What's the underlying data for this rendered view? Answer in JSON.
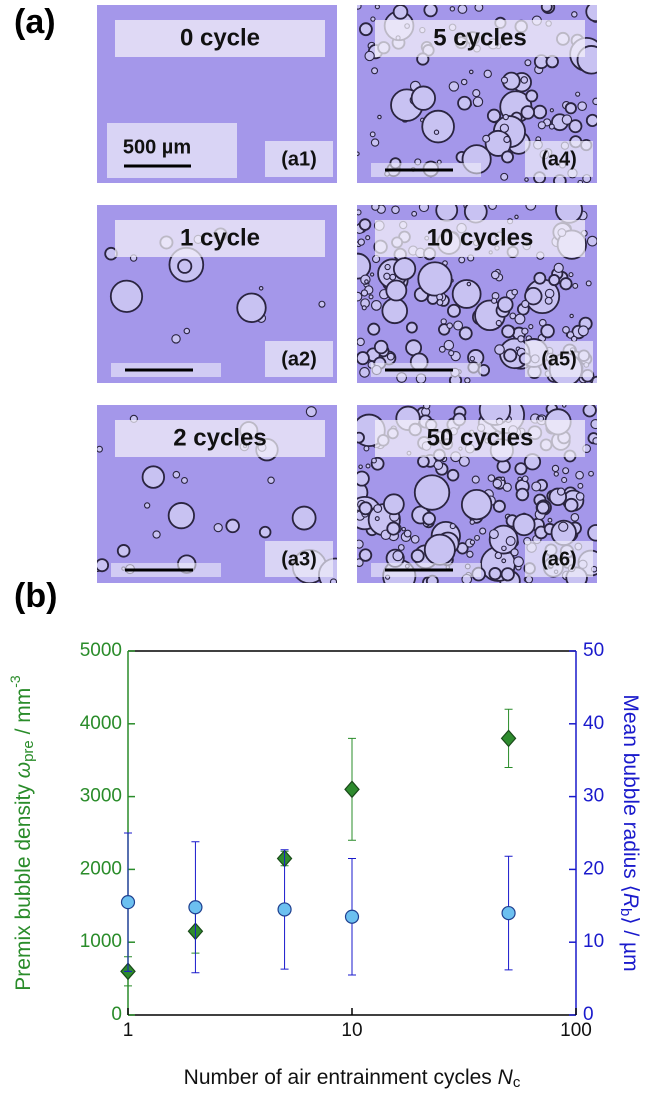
{
  "panel_a": {
    "label": "(a)",
    "images": [
      {
        "caption": "0 cycle",
        "tag": "(a1)",
        "scale_label": "500 µm"
      },
      {
        "caption": "1 cycle",
        "tag": "(a2)"
      },
      {
        "caption": "2 cycles",
        "tag": "(a3)"
      },
      {
        "caption": "5 cycles",
        "tag": "(a4)"
      },
      {
        "caption": "10 cycles",
        "tag": "(a5)"
      },
      {
        "caption": "50 cycles",
        "tag": "(a6)"
      }
    ]
  },
  "chart_data": {
    "type": "scatter",
    "label": "(b)",
    "x_label": [
      "Number of air entrainment cycles ",
      "N",
      "c"
    ],
    "y_label": [
      "Premix bubble density ",
      "ω",
      "pre",
      " / mm",
      "-3"
    ],
    "y2_label": [
      "Mean bubble radius ",
      "⟨",
      "R",
      "b",
      "⟩",
      " / µm"
    ],
    "x": [
      1,
      2,
      5,
      10,
      50
    ],
    "xlim": [
      1,
      100
    ],
    "xticks": [
      1,
      10,
      100
    ],
    "log_x": true,
    "ylim": [
      0,
      5000
    ],
    "yticks": [
      0,
      1000,
      2000,
      3000,
      4000,
      5000
    ],
    "y2lim": [
      0,
      50
    ],
    "y2ticks": [
      0,
      10,
      20,
      30,
      40,
      50
    ],
    "y_color": "#2a8c2a",
    "y2_color": "#1a1acc",
    "series": [
      {
        "color": "#2e8b2e",
        "edge_color": "#1a4a1a",
        "marker": "diamond",
        "values": [
          600,
          1150,
          2150,
          3100,
          3800
        ],
        "errors": [
          200,
          300,
          100,
          700,
          400
        ]
      },
      {
        "color": "#6cc0f0",
        "edge_color": "#1f3f8f",
        "marker": "circle",
        "axis": "y2",
        "values": [
          15.5,
          14.8,
          14.5,
          13.5,
          14
        ],
        "errors": [
          9.5,
          9,
          8.2,
          8,
          7.8
        ]
      }
    ]
  }
}
